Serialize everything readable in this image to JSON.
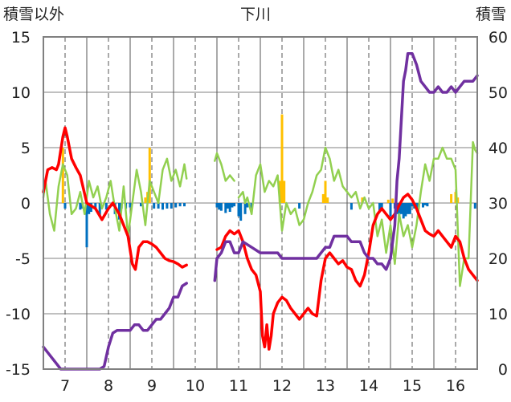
{
  "chart_data": {
    "type": "line",
    "title": "下川",
    "ylabel_left": "積雪以外",
    "ylabel_right": "積雪",
    "xlim": [
      6.5,
      16.5
    ],
    "ylim_left": [
      -15,
      15
    ],
    "ylim_right": [
      0,
      60
    ],
    "x_ticks": [
      7,
      8,
      9,
      10,
      11,
      12,
      13,
      14,
      15,
      16
    ],
    "y_ticks_left": [
      15,
      10,
      5,
      0,
      -5,
      -10,
      -15
    ],
    "y_ticks_right": [
      60,
      50,
      40,
      30,
      20,
      10,
      0
    ],
    "grid": "dashed-vertical-at-days, solid-horizontal",
    "colors": {
      "temperature": "#ff0000",
      "snow_depth": "#7030a0",
      "green_series": "#92d050",
      "bars_positive": "#ffc000",
      "bars_negative": "#0070c0",
      "gridline": "#808080",
      "frame": "#808080"
    },
    "series": [
      {
        "key": "red",
        "axis": "left",
        "x": [
          6.5,
          6.6,
          6.7,
          6.8,
          6.85,
          6.95,
          7.0,
          7.05,
          7.15,
          7.25,
          7.35,
          7.5,
          7.7,
          7.85,
          8.0,
          8.1,
          8.25,
          8.35,
          8.45,
          8.55,
          8.62,
          8.7,
          8.8,
          8.9,
          9.0,
          9.1,
          9.2,
          9.3,
          9.4,
          9.5,
          9.6,
          9.7,
          9.8,
          null,
          10.5,
          10.6,
          10.7,
          10.8,
          10.9,
          11.0,
          11.1,
          11.2,
          11.3,
          11.4,
          11.5,
          11.55,
          11.6,
          11.65,
          11.7,
          11.75,
          11.8,
          11.9,
          12.0,
          12.1,
          12.2,
          12.3,
          12.4,
          12.5,
          12.6,
          12.7,
          12.8,
          12.9,
          13.0,
          13.1,
          13.2,
          13.3,
          13.4,
          13.5,
          13.6,
          13.7,
          13.8,
          13.9,
          14.0,
          14.1,
          14.2,
          14.3,
          14.4,
          14.5,
          14.6,
          14.7,
          14.8,
          14.9,
          15.0,
          15.1,
          15.2,
          15.3,
          15.4,
          15.5,
          15.6,
          15.7,
          15.8,
          15.9,
          16.0,
          16.1,
          16.2,
          16.3,
          16.4,
          16.5
        ],
        "values": [
          1,
          3,
          3.2,
          3,
          3.5,
          6,
          6.8,
          6,
          4,
          3.2,
          2.5,
          0,
          -0.5,
          -1.5,
          -0.5,
          0,
          -1,
          -2,
          -3,
          -5.5,
          -6,
          -4,
          -3.5,
          -3.5,
          -3.7,
          -4,
          -4.5,
          -5,
          -5.2,
          -5.3,
          -5.5,
          -5.8,
          -5.6,
          null,
          -4.2,
          -4,
          -3,
          -2.5,
          -2.8,
          -2.5,
          -3.5,
          -5,
          -6,
          -6.5,
          -8,
          -12,
          -13,
          -11,
          -13.2,
          -12,
          -10,
          -9,
          -8.5,
          -8.8,
          -9.5,
          -10,
          -10.5,
          -10,
          -9.5,
          -10,
          -10.2,
          -7,
          -5,
          -4.5,
          -5,
          -5.5,
          -5.2,
          -5.8,
          -6,
          -7,
          -7.5,
          -6.5,
          -4.5,
          -2,
          -1,
          -0.5,
          -1,
          -1.5,
          -1,
          -0.2,
          0.5,
          0.8,
          0.3,
          -0.5,
          -1.5,
          -2.5,
          -2.8,
          -3,
          -2.5,
          -3,
          -3.5,
          -4,
          -3,
          -3.5,
          -5,
          -6,
          -6.5,
          -7
        ]
      },
      {
        "key": "purple",
        "axis": "right",
        "x": [
          6.5,
          6.6,
          6.7,
          6.8,
          6.9,
          7.0,
          7.3,
          7.6,
          7.8,
          7.9,
          8.0,
          8.1,
          8.2,
          8.3,
          8.5,
          8.6,
          8.7,
          8.8,
          8.9,
          9.0,
          9.1,
          9.2,
          9.3,
          9.4,
          9.5,
          9.6,
          9.7,
          9.8,
          null,
          10.45,
          10.5,
          10.6,
          10.7,
          10.8,
          10.9,
          11.0,
          11.1,
          11.3,
          11.5,
          11.7,
          11.9,
          12.0,
          12.1,
          12.2,
          12.3,
          12.5,
          12.7,
          12.8,
          12.9,
          13.0,
          13.1,
          13.2,
          13.3,
          13.4,
          13.5,
          13.6,
          13.7,
          13.8,
          13.9,
          14.0,
          14.1,
          14.2,
          14.3,
          14.4,
          14.5,
          14.55,
          14.6,
          14.65,
          14.7,
          14.75,
          14.8,
          14.85,
          14.9,
          15.0,
          15.1,
          15.2,
          15.3,
          15.4,
          15.5,
          15.6,
          15.7,
          15.8,
          15.9,
          16.0,
          16.1,
          16.2,
          16.3,
          16.4,
          16.5
        ],
        "values": [
          4,
          3,
          2,
          1,
          0,
          0,
          0,
          0,
          0,
          0.5,
          4,
          6.5,
          7,
          7,
          7,
          8,
          8,
          7,
          7,
          8,
          9,
          9,
          10,
          11,
          13,
          13,
          15,
          15.5,
          null,
          16,
          20,
          21,
          23,
          23,
          21,
          21,
          23,
          22,
          21,
          21,
          21,
          20,
          20,
          20,
          20,
          20,
          20,
          20,
          21,
          22,
          22,
          24,
          24,
          24,
          24,
          23,
          23,
          23,
          21,
          20,
          20,
          19,
          19,
          18,
          20,
          23,
          26,
          34,
          38,
          45,
          52,
          54,
          57,
          57,
          55,
          52,
          51,
          50,
          50,
          51,
          50,
          50,
          51,
          50,
          51,
          52,
          52,
          52,
          53
        ]
      },
      {
        "key": "green",
        "axis": "left",
        "x": [
          6.5,
          6.55,
          6.65,
          6.75,
          6.85,
          6.95,
          7.05,
          7.15,
          7.25,
          7.35,
          7.45,
          7.55,
          7.65,
          7.75,
          7.85,
          7.95,
          8.05,
          8.15,
          8.25,
          8.35,
          8.45,
          8.55,
          8.65,
          8.75,
          8.85,
          8.95,
          9.05,
          9.15,
          9.25,
          9.35,
          9.45,
          9.55,
          9.65,
          9.75,
          9.8,
          null,
          10.45,
          10.5,
          10.6,
          10.7,
          10.8,
          10.9,
          null,
          11.0,
          11.1,
          11.15,
          11.2,
          11.3,
          11.4,
          11.5,
          11.6,
          11.7,
          11.8,
          11.9,
          12.0,
          12.1,
          12.2,
          12.3,
          12.4,
          12.5,
          12.6,
          12.7,
          12.8,
          12.9,
          13.0,
          13.1,
          13.2,
          13.3,
          13.4,
          13.5,
          13.6,
          13.7,
          13.8,
          13.9,
          14.0,
          14.1,
          14.2,
          14.3,
          14.4,
          14.5,
          14.6,
          14.7,
          14.8,
          14.9,
          15.0,
          15.1,
          15.2,
          15.3,
          15.4,
          15.5,
          15.6,
          15.7,
          15.8,
          15.9,
          16.0,
          16.1,
          16.2,
          16.3,
          16.4,
          16.45,
          16.5
        ],
        "values": [
          0.5,
          2,
          -1,
          -2.5,
          1.5,
          3.5,
          2.5,
          -1,
          -0.5,
          1,
          -1,
          2,
          0.5,
          1.5,
          -0.5,
          0.5,
          2,
          -0.5,
          -2.5,
          1.5,
          -3,
          0,
          3,
          1,
          -2,
          2,
          1,
          0,
          3,
          4,
          2,
          3,
          1.5,
          3.5,
          2.2,
          null,
          3.8,
          4.5,
          3.5,
          2,
          2.5,
          2,
          null,
          0.5,
          1,
          0,
          0.5,
          -1,
          2.5,
          3.5,
          1,
          2,
          1.5,
          2.5,
          -2.5,
          0,
          -1,
          -0.5,
          -2,
          -1.5,
          0,
          1,
          2.5,
          3,
          5,
          4,
          2,
          3,
          1.5,
          1,
          0.5,
          1,
          -0.5,
          0.5,
          -0.5,
          0,
          -3,
          -1.5,
          -4.5,
          -2,
          -5.5,
          -1,
          -3,
          -2,
          -4,
          -2,
          1,
          3.5,
          2,
          4,
          4,
          5,
          4,
          4,
          3,
          -7.5,
          -5,
          -5,
          5.5,
          4.8,
          4.5
        ]
      }
    ],
    "bars": {
      "axis": "left",
      "x": [
        6.95,
        7.0,
        7.4,
        7.35,
        7.5,
        7.55,
        7.6,
        7.7,
        7.8,
        7.95,
        8.1,
        8.15,
        8.25,
        8.3,
        8.4,
        8.5,
        8.75,
        8.85,
        8.9,
        8.95,
        9.05,
        9.15,
        9.25,
        9.35,
        9.45,
        9.55,
        9.65,
        9.75,
        10.5,
        10.55,
        10.6,
        10.7,
        10.75,
        10.8,
        10.85,
        10.9,
        11.0,
        11.05,
        11.15,
        11.2,
        11.3,
        11.95,
        12.0,
        12.05,
        12.4,
        12.95,
        13.0,
        13.05,
        13.6,
        13.85,
        14.25,
        14.3,
        14.45,
        14.5,
        14.55,
        14.6,
        14.65,
        14.7,
        14.75,
        14.8,
        14.85,
        14.9,
        14.95,
        15.0,
        15.05,
        15.1,
        15.15,
        15.25,
        15.3,
        15.35,
        15.9,
        16.0,
        16.05,
        16.45
      ],
      "values": [
        5,
        -0.5,
        -0.5,
        -0.6,
        -4,
        -1,
        -0.8,
        -0.5,
        -1.2,
        -0.6,
        -0.3,
        -1,
        -1.5,
        -0.5,
        -0.5,
        -0.4,
        -0.3,
        0.5,
        1,
        5,
        -0.5,
        -0.5,
        -0.6,
        -0.5,
        -0.5,
        -0.4,
        -0.3,
        -0.3,
        -0.4,
        -0.6,
        -0.7,
        -0.9,
        -0.5,
        -0.8,
        -0.4,
        -0.3,
        -1.2,
        -1.6,
        -1,
        -0.4,
        -0.6,
        2,
        8,
        2,
        -0.5,
        0.8,
        2,
        0.5,
        -0.6,
        0.5,
        -0.8,
        -0.5,
        0.3,
        -1.2,
        0.4,
        -0.5,
        -1,
        -1.5,
        -1,
        -1.4,
        -1.2,
        -1,
        -1,
        -0.3,
        -0.5,
        -0.6,
        -0.5,
        -0.4,
        -0.2,
        -0.3,
        0.8,
        1,
        0.5,
        -0.5
      ]
    }
  }
}
